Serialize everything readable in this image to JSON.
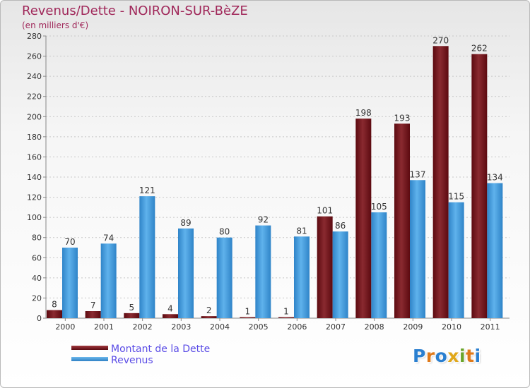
{
  "header": {
    "title": "Revenus/Dette - NOIRON-SUR-BèZE",
    "subtitle": "(en milliers d'€)"
  },
  "legend": {
    "items": [
      {
        "label": "Montant de la Dette",
        "color": "#6e1016"
      },
      {
        "label": "Revenus",
        "color": "#3e9ad8"
      }
    ]
  },
  "logo": {
    "text": "Proxiti"
  },
  "chart_data": {
    "type": "bar",
    "title": "Revenus/Dette - NOIRON-SUR-BèZE",
    "subtitle": "(en milliers d'€)",
    "xlabel": "",
    "ylabel": "",
    "ylim": [
      0,
      280
    ],
    "ytick_step": 20,
    "grid": true,
    "legend_position": "bottom-left",
    "categories": [
      "2000",
      "2001",
      "2002",
      "2003",
      "2004",
      "2005",
      "2006",
      "2007",
      "2008",
      "2009",
      "2010",
      "2011"
    ],
    "series": [
      {
        "name": "Montant de la Dette",
        "color": "#6e1016",
        "values": [
          8,
          7,
          5,
          4,
          2,
          1,
          1,
          101,
          198,
          193,
          270,
          262
        ]
      },
      {
        "name": "Revenus",
        "color": "#3e9ad8",
        "values": [
          70,
          74,
          121,
          89,
          80,
          92,
          81,
          86,
          105,
          137,
          115,
          134
        ]
      }
    ]
  }
}
